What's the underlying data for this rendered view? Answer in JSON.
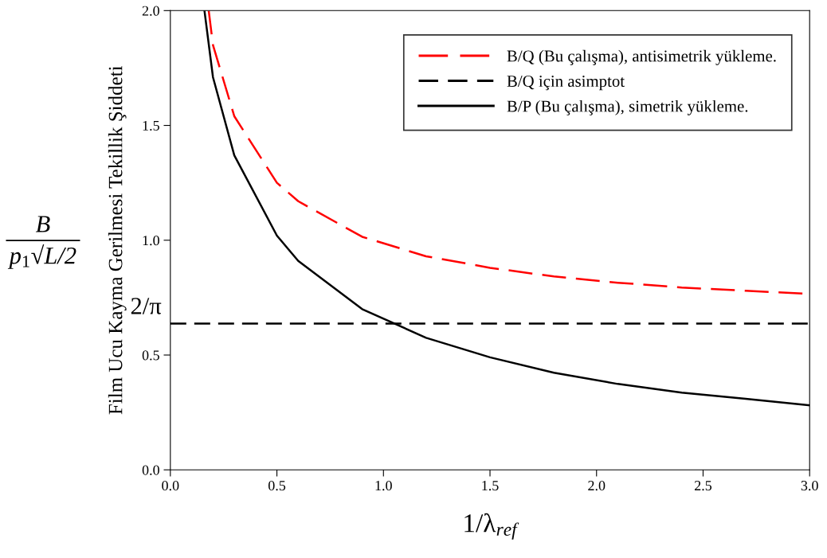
{
  "chart_data": {
    "type": "line",
    "xlabel": "1/λ$_{ref}$",
    "ylabel": "Film Ucu Kayma Gerilmesi Tekillik Şiddeti",
    "xlim": [
      0.0,
      3.0
    ],
    "xticks": [
      {
        "value": 0,
        "label": "0.0"
      },
      {
        "value": 0.5,
        "label": "0.5"
      },
      {
        "value": 1,
        "label": "1.0"
      },
      {
        "value": 1.5,
        "label": "1.5"
      },
      {
        "value": 2,
        "label": "2.0"
      },
      {
        "value": 2.5,
        "label": "2.5"
      },
      {
        "value": 3,
        "label": "3.0"
      }
    ],
    "ylim": [
      0.0,
      2.0
    ],
    "yticks": [
      {
        "value": 0,
        "label": "0.0"
      },
      {
        "value": 0.5,
        "label": "0.5"
      },
      {
        "value": 1,
        "label": "1.0"
      },
      {
        "value": 1.5,
        "label": "1.5"
      },
      {
        "value": 2,
        "label": "2.0"
      }
    ],
    "series": [
      {
        "name": "B/Q (Bu çalışma), antisimetrik yükleme.",
        "color": "#ff0000",
        "line_style": "dashed",
        "x": [
          0.18,
          0.2,
          0.3,
          0.5,
          0.6,
          0.9,
          1.2,
          1.5,
          1.8,
          2.1,
          2.4,
          2.7,
          3.0
        ],
        "values": [
          2.0,
          1.85,
          1.54,
          1.25,
          1.17,
          1.015,
          0.93,
          0.88,
          0.842,
          0.815,
          0.794,
          0.78,
          0.766
        ]
      },
      {
        "name": "B/Q için asimptot",
        "color": "#000000",
        "line_style": "dashed",
        "x": [
          0.0,
          3.0
        ],
        "values": [
          0.637,
          0.637
        ]
      },
      {
        "name": "B/P (Bu çalışma), simetrik yükleme.",
        "color": "#000000",
        "line_style": "solid",
        "x": [
          0.16,
          0.2,
          0.3,
          0.5,
          0.6,
          0.9,
          1.2,
          1.5,
          1.8,
          2.1,
          2.4,
          2.7,
          3.0
        ],
        "values": [
          2.0,
          1.71,
          1.37,
          1.02,
          0.91,
          0.7,
          0.575,
          0.49,
          0.423,
          0.374,
          0.336,
          0.309,
          0.281
        ]
      }
    ],
    "annotations": [
      {
        "text": "2/π",
        "x": 0.0,
        "y": 0.637
      },
      "B",
      "p$_{1}$√L/2"
    ],
    "legend": "top right",
    "grid": false,
    "marker": "none"
  }
}
